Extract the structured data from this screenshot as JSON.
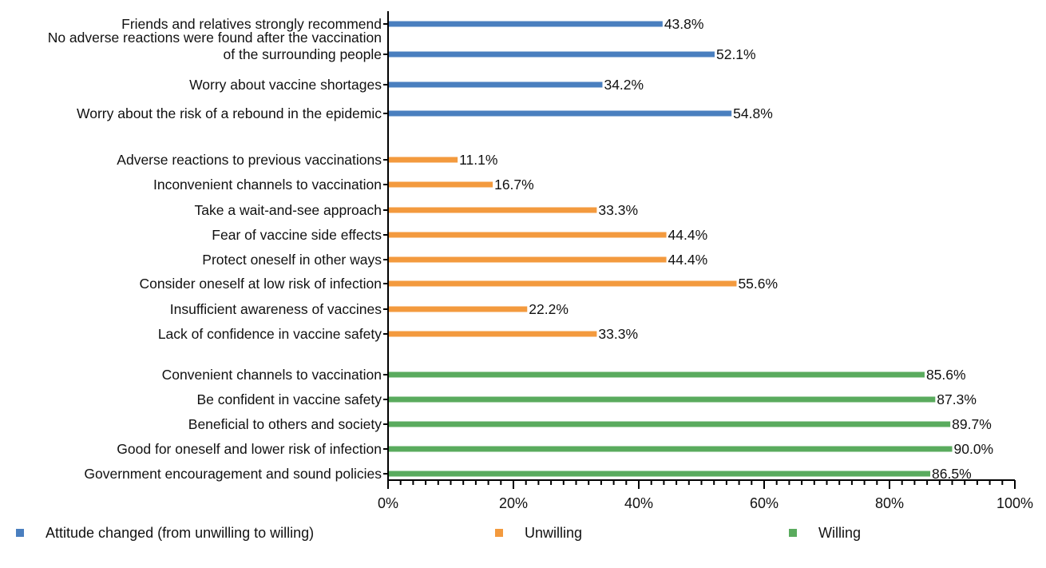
{
  "chart_data": {
    "type": "bar",
    "orientation": "horizontal",
    "title": "",
    "xlabel": "",
    "ylabel": "",
    "xlim": [
      0,
      100
    ],
    "x_ticks": [
      "0%",
      "20%",
      "40%",
      "60%",
      "80%",
      "100%"
    ],
    "value_unit": "%",
    "legend_position": "bottom",
    "groups": [
      {
        "name": "Attitude changed (from unwilling to willing)",
        "color": "#4a7fbf",
        "bars": [
          {
            "label": "Friends and relatives strongly recommend",
            "value": 43.8,
            "value_label": "43.8%"
          },
          {
            "label": "No adverse reactions were found after the vaccination of the surrounding people",
            "label_lines": [
              "No adverse reactions were found after the vaccination",
              "of the surrounding people"
            ],
            "value": 52.1,
            "value_label": "52.1%"
          },
          {
            "label": "Worry about vaccine shortages",
            "value": 34.2,
            "value_label": "34.2%"
          },
          {
            "label": "Worry about the risk of a rebound in the epidemic",
            "value": 54.8,
            "value_label": "54.8%"
          }
        ]
      },
      {
        "name": "Unwilling",
        "color": "#f39a3e",
        "bars": [
          {
            "label": "Adverse reactions to previous vaccinations",
            "value": 11.1,
            "value_label": "11.1%"
          },
          {
            "label": "Inconvenient channels to vaccination",
            "value": 16.7,
            "value_label": "16.7%"
          },
          {
            "label": "Take a wait-and-see approach",
            "value": 33.3,
            "value_label": "33.3%"
          },
          {
            "label": "Fear of vaccine side effects",
            "value": 44.4,
            "value_label": "44.4%"
          },
          {
            "label": "Protect oneself in other ways",
            "value": 44.4,
            "value_label": "44.4%"
          },
          {
            "label": "Consider oneself at low risk of infection",
            "value": 55.6,
            "value_label": "55.6%"
          },
          {
            "label": "Insufficient awareness of vaccines",
            "value": 22.2,
            "value_label": "22.2%"
          },
          {
            "label": "Lack of confidence in vaccine safety",
            "value": 33.3,
            "value_label": "33.3%"
          }
        ]
      },
      {
        "name": "Willing",
        "color": "#5aab5e",
        "bars": [
          {
            "label": "Convenient channels to vaccination",
            "value": 85.6,
            "value_label": "85.6%"
          },
          {
            "label": "Be confident in vaccine safety",
            "value": 87.3,
            "value_label": "87.3%"
          },
          {
            "label": "Beneficial to others and society",
            "value": 89.7,
            "value_label": "89.7%"
          },
          {
            "label": "Good for oneself and lower risk of infection",
            "value": 90.0,
            "value_label": "90.0%"
          },
          {
            "label": "Government encouragement and sound policies",
            "value": 86.5,
            "value_label": "86.5%"
          }
        ]
      }
    ]
  }
}
